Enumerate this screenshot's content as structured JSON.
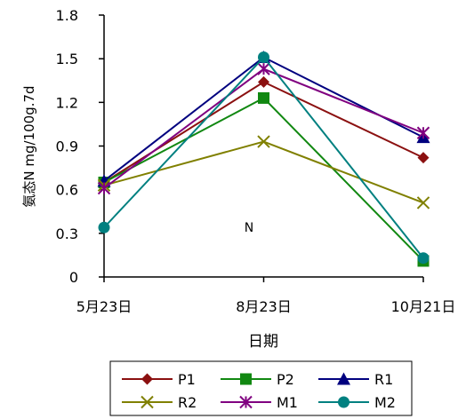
{
  "chart_data": {
    "type": "line",
    "title": "",
    "xlabel": "日期",
    "ylabel": "氨态N mg/100g.7d",
    "annotation": "N",
    "categories": [
      "5月23日",
      "8月23日",
      "10月21日"
    ],
    "ylim": [
      0,
      1.8
    ],
    "yticks": [
      "0",
      "0.3",
      "0.6",
      "0.9",
      "1.2",
      "1.5",
      "1.8"
    ],
    "grid": false,
    "legend_position": "bottom",
    "series": [
      {
        "name": "P1",
        "values": [
          0.65,
          1.34,
          0.82
        ],
        "color": "#8B1010",
        "marker": "diamond"
      },
      {
        "name": "P2",
        "values": [
          0.65,
          1.23,
          0.11
        ],
        "color": "#118811",
        "marker": "square"
      },
      {
        "name": "R1",
        "values": [
          0.66,
          1.51,
          0.96
        ],
        "color": "#00007F",
        "marker": "triangle"
      },
      {
        "name": "R2",
        "values": [
          0.63,
          0.93,
          0.51
        ],
        "color": "#808000",
        "marker": "x"
      },
      {
        "name": "M1",
        "values": [
          0.61,
          1.43,
          0.99
        ],
        "color": "#800080",
        "marker": "star"
      },
      {
        "name": "M2",
        "values": [
          0.34,
          1.51,
          0.13
        ],
        "color": "#008080",
        "marker": "circle"
      }
    ]
  }
}
